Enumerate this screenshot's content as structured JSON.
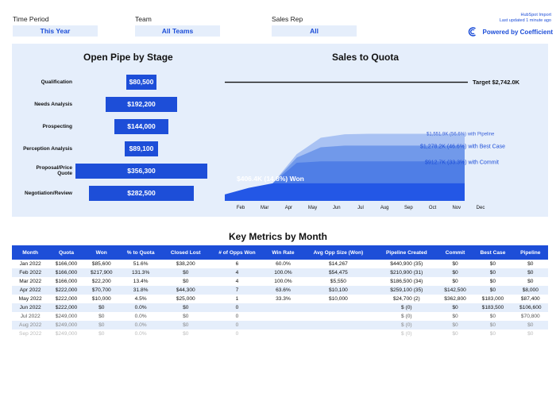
{
  "filters": {
    "time_period": {
      "label": "Time Period",
      "value": "This Year"
    },
    "team": {
      "label": "Team",
      "value": "All Teams"
    },
    "sales_rep": {
      "label": "Sales Rep",
      "value": "All"
    }
  },
  "header": {
    "hubspot_import": "HubSpot Import",
    "last_updated": "Last updated 1 minute ago",
    "powered_by": "Powered by Coefficient",
    "logo_icon": "coefficient-logo-icon"
  },
  "open_pipe": {
    "title": "Open Pipe by Stage",
    "stages": [
      {
        "label": "Qualification",
        "value": "$80,500",
        "amount": 80500
      },
      {
        "label": "Needs Analysis",
        "value": "$192,200",
        "amount": 192200
      },
      {
        "label": "Prospecting",
        "value": "$144,000",
        "amount": 144000
      },
      {
        "label": "Perception Analysis",
        "value": "$89,100",
        "amount": 89100
      },
      {
        "label": "Proposal/Price Quote",
        "value": "$356,300",
        "amount": 356300
      },
      {
        "label": "Negotiation/Review",
        "value": "$282,500",
        "amount": 282500
      }
    ]
  },
  "chart_data": {
    "type": "area",
    "title": "Sales to Quota",
    "categories": [
      "Feb",
      "Mar",
      "Apr",
      "May",
      "Jun",
      "Jul",
      "Aug",
      "Sep",
      "Oct",
      "Nov",
      "Dec"
    ],
    "target_label": "Target $2,742.0K",
    "target": 2742.0,
    "annotations": {
      "won": "$406.4K (14.8%) Won",
      "pipeline": "$1,551.9K (56.6%) with Pipeline",
      "best_case": "$1,278.2K (46.6%) with Best Case",
      "commit": "$912.7K (33.3%) with Commit"
    },
    "series": [
      {
        "name": "Pipeline",
        "values": [
          null,
          null,
          406.4,
          1080,
          1460,
          1540,
          1551.9,
          1551.9,
          1551.9,
          1551.9,
          1551.9
        ],
        "color": "#a9c2f3"
      },
      {
        "name": "Best Case",
        "values": [
          null,
          null,
          406.4,
          1000,
          1240,
          1278.2,
          1278.2,
          1278.2,
          1278.2,
          1278.2,
          1278.2
        ],
        "color": "#7199ea"
      },
      {
        "name": "Commit",
        "values": [
          null,
          null,
          406.4,
          880,
          912.7,
          912.7,
          912.7,
          912.7,
          912.7,
          912.7,
          912.7
        ],
        "color": "#4f7ee6"
      },
      {
        "name": "Won",
        "values": [
          150,
          300,
          406.4,
          406.4,
          406.4,
          406.4,
          406.4,
          406.4,
          406.4,
          406.4,
          406.4
        ],
        "color": "#2357e6"
      }
    ],
    "ylim": [
      0,
      2900
    ]
  },
  "key_metrics": {
    "title": "Key Metrics by Month",
    "columns": [
      "Month",
      "Quota",
      "Won",
      "% to Quota",
      "Closed Lost",
      "# of Opps Won",
      "Win Rate",
      "Avg Opp Size (Won)",
      "Pipeline Created",
      "Commit",
      "Best Case",
      "Pipeline"
    ],
    "rows": [
      [
        "Jan 2022",
        "$166,000",
        "$85,600",
        "51.6%",
        "$38,200",
        "6",
        "60.0%",
        "$14,267",
        "$440,900 (35)",
        "$0",
        "$0",
        "$0"
      ],
      [
        "Feb 2022",
        "$166,000",
        "$217,900",
        "131.3%",
        "$0",
        "4",
        "100.0%",
        "$54,475",
        "$210,900 (31)",
        "$0",
        "$0",
        "$0"
      ],
      [
        "Mar 2022",
        "$166,000",
        "$22,200",
        "13.4%",
        "$0",
        "4",
        "100.0%",
        "$5,550",
        "$186,500 (34)",
        "$0",
        "$0",
        "$0"
      ],
      [
        "Apr 2022",
        "$222,000",
        "$70,700",
        "31.8%",
        "$44,300",
        "7",
        "63.6%",
        "$10,100",
        "$259,100 (35)",
        "$142,500",
        "$0",
        "$8,000"
      ],
      [
        "May 2022",
        "$222,000",
        "$10,000",
        "4.5%",
        "$25,000",
        "1",
        "33.3%",
        "$10,000",
        "$24,700 (2)",
        "$362,800",
        "$183,000",
        "$87,400"
      ],
      [
        "Jun 2022",
        "$222,000",
        "$0",
        "0.0%",
        "$0",
        "0",
        "",
        "",
        "$ (0)",
        "$0",
        "$183,500",
        "$106,600"
      ],
      [
        "Jul 2022",
        "$249,000",
        "$0",
        "0.0%",
        "$0",
        "0",
        "",
        "",
        "$ (0)",
        "$0",
        "$0",
        "$70,800"
      ],
      [
        "Aug 2022",
        "$249,000",
        "$0",
        "0.0%",
        "$0",
        "0",
        "",
        "",
        "$ (0)",
        "$0",
        "$0",
        "$0"
      ],
      [
        "Sep 2022",
        "$249,000",
        "$0",
        "0.0%",
        "$0",
        "0",
        "",
        "",
        "$ (0)",
        "$0",
        "$0",
        "$0"
      ]
    ]
  }
}
